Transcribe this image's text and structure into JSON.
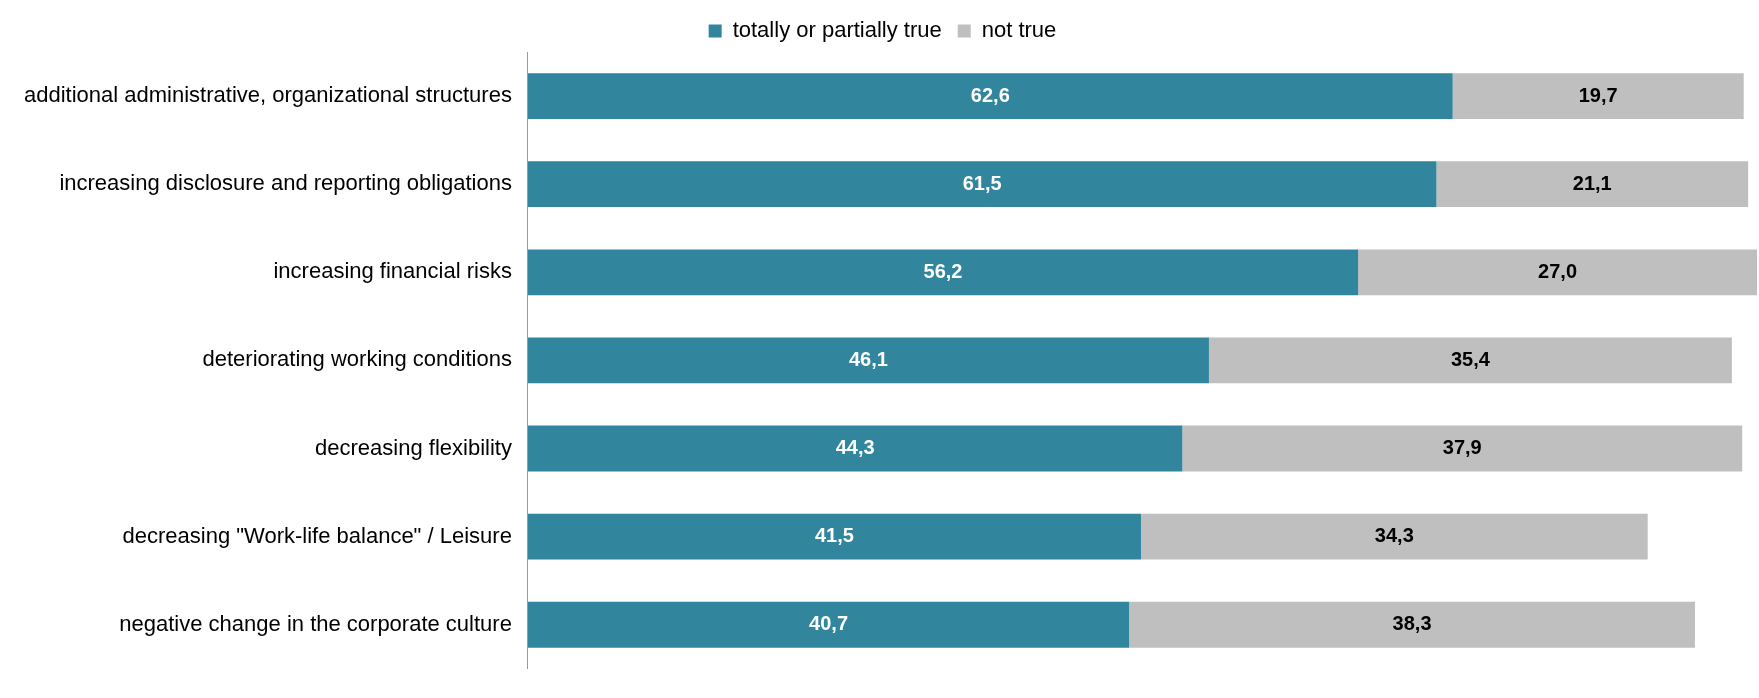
{
  "chart_data": {
    "type": "bar",
    "orientation": "horizontal",
    "stacked": true,
    "categories": [
      "additional administrative, organizational structures",
      "increasing disclosure and reporting obligations",
      "increasing financial risks",
      "deteriorating working conditions",
      "decreasing flexibility",
      "decreasing \"Work-life balance\" / Leisure",
      "negative change in the corporate culture"
    ],
    "series": [
      {
        "name": "totally or partially true",
        "color": "#31859c",
        "values": [
          62.6,
          61.5,
          56.2,
          46.1,
          44.3,
          41.5,
          40.7
        ],
        "value_labels": [
          "62,6",
          "61,5",
          "56,2",
          "46,1",
          "44,3",
          "41,5",
          "40,7"
        ]
      },
      {
        "name": "not true",
        "color": "#bfbfbf",
        "values": [
          19.7,
          21.1,
          27.0,
          35.4,
          37.9,
          34.3,
          38.3
        ],
        "value_labels": [
          "19,7",
          "21,1",
          "27,0",
          "35,4",
          "37,9",
          "34,3",
          "38,3"
        ]
      }
    ],
    "xlim": [
      0,
      83.2
    ],
    "tick_labels": "y",
    "grid": false,
    "legend": "top"
  }
}
